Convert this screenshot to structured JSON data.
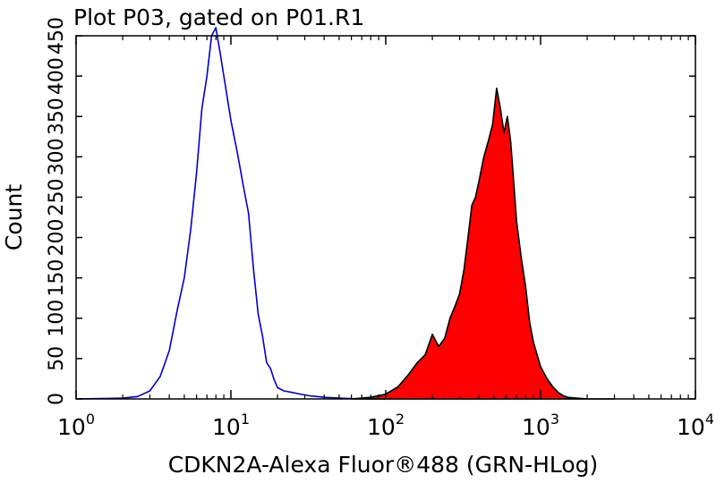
{
  "chart_data": {
    "type": "histogram",
    "title": "Plot P03, gated on P01.R1",
    "xlabel": "CDKN2A-Alexa Fluor®488 (GRN-HLog)",
    "ylabel": "Count",
    "x_scale": "log10",
    "xlim": [
      1,
      10000
    ],
    "ylim": [
      0,
      450
    ],
    "yticks": [
      0,
      50,
      100,
      150,
      200,
      250,
      300,
      350,
      400,
      450
    ],
    "xticks": [
      {
        "base": "10",
        "exp": "0",
        "value": 1
      },
      {
        "base": "10",
        "exp": "1",
        "value": 10
      },
      {
        "base": "10",
        "exp": "2",
        "value": 100
      },
      {
        "base": "10",
        "exp": "3",
        "value": 1000
      },
      {
        "base": "10",
        "exp": "4",
        "value": 10000
      }
    ],
    "grid": false,
    "series": [
      {
        "style": "outline",
        "color": "#0000cc",
        "x": [
          1,
          2,
          2.5,
          3,
          3.5,
          4,
          4.5,
          5,
          5.5,
          6,
          6.5,
          7,
          7.5,
          8,
          8.5,
          9,
          10,
          11,
          12,
          13,
          14,
          15,
          16,
          17,
          18,
          19,
          20,
          22,
          25,
          28,
          32,
          36,
          40,
          50,
          70,
          100
        ],
        "y": [
          0,
          1,
          3,
          10,
          28,
          60,
          110,
          150,
          210,
          280,
          360,
          400,
          450,
          460,
          430,
          400,
          345,
          305,
          265,
          230,
          160,
          105,
          78,
          45,
          38,
          24,
          14,
          10,
          8,
          6,
          4,
          3,
          2,
          1,
          0,
          0
        ]
      },
      {
        "style": "filled",
        "color": "#ff0000",
        "edge": "#000000",
        "x": [
          60,
          80,
          100,
          120,
          140,
          160,
          180,
          200,
          220,
          240,
          260,
          280,
          300,
          320,
          340,
          360,
          380,
          400,
          430,
          460,
          490,
          520,
          550,
          580,
          610,
          640,
          670,
          700,
          750,
          800,
          850,
          900,
          1000,
          1100,
          1200,
          1300,
          1400,
          1500,
          1700,
          2000,
          3000
        ],
        "y": [
          0,
          2,
          6,
          15,
          30,
          45,
          55,
          80,
          65,
          75,
          100,
          115,
          130,
          160,
          200,
          240,
          250,
          270,
          300,
          320,
          340,
          385,
          360,
          330,
          350,
          320,
          270,
          220,
          175,
          140,
          95,
          70,
          40,
          25,
          15,
          8,
          4,
          2,
          1,
          0,
          0
        ]
      }
    ]
  }
}
